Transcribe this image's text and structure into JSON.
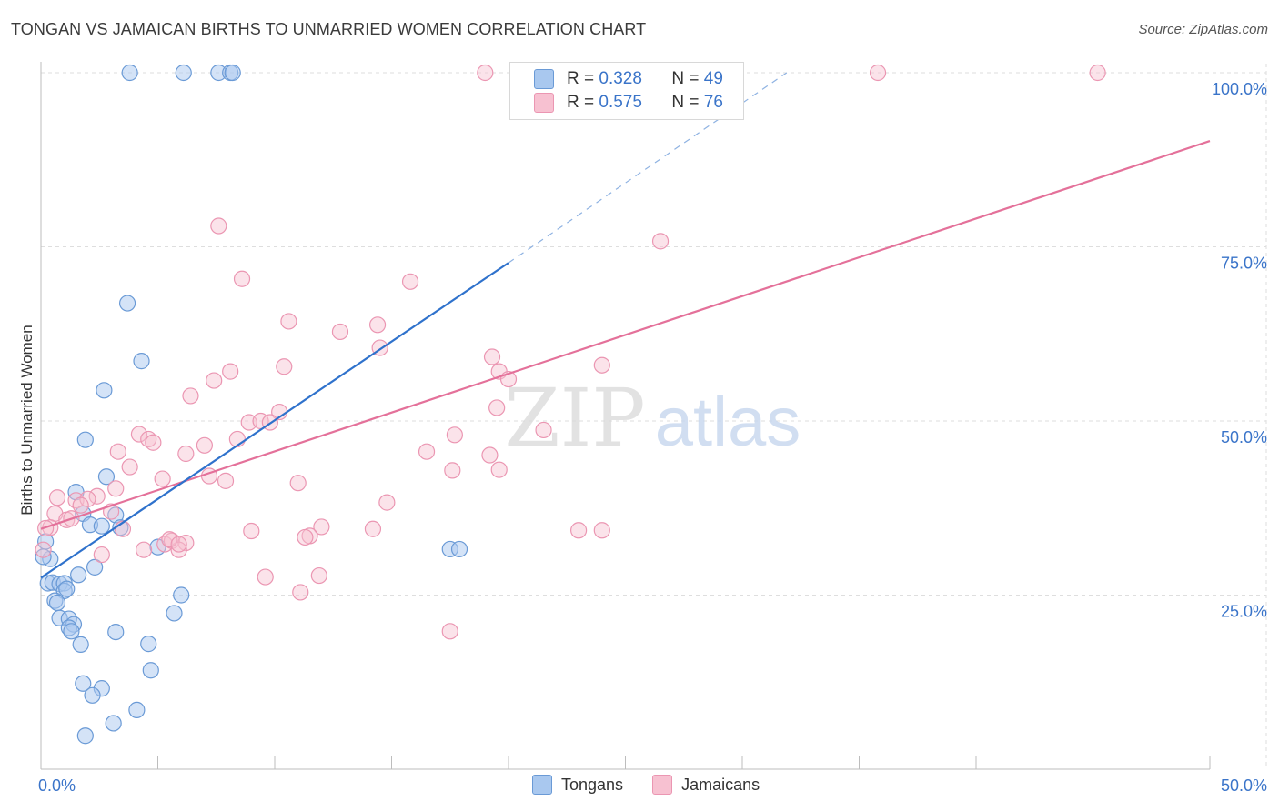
{
  "header": {
    "title": "TONGAN VS JAMAICAN BIRTHS TO UNMARRIED WOMEN CORRELATION CHART",
    "source": "Source: ZipAtlas.com"
  },
  "legend": {
    "rows": [
      {
        "r_label": "R = ",
        "r_value": "0.328",
        "n_label": "N = ",
        "n_value": "49"
      },
      {
        "r_label": "R = ",
        "r_value": "0.575",
        "n_label": "N = ",
        "n_value": "76"
      }
    ]
  },
  "bottom_legend": [
    "Tongans",
    "Jamaicans"
  ],
  "watermark": {
    "zip": "ZIP",
    "atlas": "atlas"
  },
  "colors": {
    "tongan_fill": "#a9c8ef",
    "tongan_stroke": "#6a9ad6",
    "tongan_line": "#2f72cc",
    "jamaican_fill": "#f7c1d1",
    "jamaican_stroke": "#eb96b2",
    "jamaican_line": "#e4719a",
    "axis_label": "#3a74c9",
    "grid": "#dedede"
  },
  "chart_data": {
    "type": "scatter",
    "title": "TONGAN VS JAMAICAN BIRTHS TO UNMARRIED WOMEN CORRELATION CHART",
    "xlabel": "",
    "ylabel": "Births to Unmarried Women",
    "xlim": [
      0,
      50
    ],
    "ylim": [
      0,
      100
    ],
    "x_tick_labels": [
      "0.0%",
      "50.0%"
    ],
    "y_tick_labels": [
      {
        "value": 25,
        "label": "25.0%"
      },
      {
        "value": 50,
        "label": "50.0%"
      },
      {
        "value": 75,
        "label": "75.0%"
      },
      {
        "value": 100,
        "label": "100.0%"
      }
    ],
    "grid": true,
    "series": [
      {
        "name": "Tongans",
        "R": 0.328,
        "N": 49,
        "trend": {
          "x0": 0,
          "y0": 27.5,
          "x1": 20,
          "y1": 72.7,
          "dash_to_x": 31.9,
          "dash_to_y": 100
        },
        "points": [
          {
            "x": 3.8,
            "y": 100
          },
          {
            "x": 6.1,
            "y": 100
          },
          {
            "x": 7.6,
            "y": 100
          },
          {
            "x": 8.1,
            "y": 100
          },
          {
            "x": 8.2,
            "y": 100
          },
          {
            "x": 3.7,
            "y": 66.9
          },
          {
            "x": 4.3,
            "y": 58.6
          },
          {
            "x": 2.7,
            "y": 54.4
          },
          {
            "x": 1.9,
            "y": 47.3
          },
          {
            "x": 2.8,
            "y": 42
          },
          {
            "x": 1.5,
            "y": 39.8
          },
          {
            "x": 1.8,
            "y": 36.7
          },
          {
            "x": 3.2,
            "y": 36.5
          },
          {
            "x": 2.1,
            "y": 35.1
          },
          {
            "x": 2.6,
            "y": 34.9
          },
          {
            "x": 3.4,
            "y": 34.7
          },
          {
            "x": 0.2,
            "y": 32.7
          },
          {
            "x": 5.0,
            "y": 31.9
          },
          {
            "x": 0.4,
            "y": 30.2
          },
          {
            "x": 17.5,
            "y": 31.6
          },
          {
            "x": 17.9,
            "y": 31.6
          },
          {
            "x": 2.3,
            "y": 29
          },
          {
            "x": 1.6,
            "y": 27.9
          },
          {
            "x": 0.3,
            "y": 26.7
          },
          {
            "x": 0.5,
            "y": 26.8
          },
          {
            "x": 0.8,
            "y": 26.6
          },
          {
            "x": 1.0,
            "y": 26.7
          },
          {
            "x": 1.0,
            "y": 25.6
          },
          {
            "x": 1.1,
            "y": 25.9
          },
          {
            "x": 6.0,
            "y": 25
          },
          {
            "x": 0.6,
            "y": 24.2
          },
          {
            "x": 0.7,
            "y": 23.9
          },
          {
            "x": 5.7,
            "y": 22.4
          },
          {
            "x": 0.8,
            "y": 21.7
          },
          {
            "x": 1.2,
            "y": 21.6
          },
          {
            "x": 1.4,
            "y": 20.8
          },
          {
            "x": 1.2,
            "y": 20.3
          },
          {
            "x": 1.3,
            "y": 19.8
          },
          {
            "x": 3.2,
            "y": 19.7
          },
          {
            "x": 1.7,
            "y": 17.9
          },
          {
            "x": 4.6,
            "y": 18
          },
          {
            "x": 4.7,
            "y": 14.2
          },
          {
            "x": 1.8,
            "y": 12.3
          },
          {
            "x": 2.6,
            "y": 11.6
          },
          {
            "x": 2.2,
            "y": 10.6
          },
          {
            "x": 4.1,
            "y": 8.5
          },
          {
            "x": 3.1,
            "y": 6.6
          },
          {
            "x": 1.9,
            "y": 4.8
          },
          {
            "x": 0.1,
            "y": 30.5
          }
        ]
      },
      {
        "name": "Jamaicans",
        "R": 0.575,
        "N": 76,
        "trend": {
          "x0": 0,
          "y0": 34.5,
          "x1": 50,
          "y1": 90.2
        },
        "points": [
          {
            "x": 19.0,
            "y": 100
          },
          {
            "x": 35.8,
            "y": 100
          },
          {
            "x": 45.2,
            "y": 100
          },
          {
            "x": 7.6,
            "y": 78
          },
          {
            "x": 26.5,
            "y": 75.8
          },
          {
            "x": 8.6,
            "y": 70.4
          },
          {
            "x": 15.8,
            "y": 70
          },
          {
            "x": 10.6,
            "y": 64.3
          },
          {
            "x": 14.4,
            "y": 63.8
          },
          {
            "x": 12.8,
            "y": 62.8
          },
          {
            "x": 14.5,
            "y": 60.5
          },
          {
            "x": 19.3,
            "y": 59.2
          },
          {
            "x": 10.4,
            "y": 57.8
          },
          {
            "x": 8.1,
            "y": 57.1
          },
          {
            "x": 24.0,
            "y": 58
          },
          {
            "x": 19.6,
            "y": 57.1
          },
          {
            "x": 20.0,
            "y": 56
          },
          {
            "x": 7.4,
            "y": 55.8
          },
          {
            "x": 6.4,
            "y": 53.6
          },
          {
            "x": 19.5,
            "y": 51.9
          },
          {
            "x": 10.2,
            "y": 51.3
          },
          {
            "x": 8.9,
            "y": 49.8
          },
          {
            "x": 9.4,
            "y": 50
          },
          {
            "x": 9.8,
            "y": 49.8
          },
          {
            "x": 21.5,
            "y": 48.7
          },
          {
            "x": 17.7,
            "y": 48
          },
          {
            "x": 4.2,
            "y": 48.1
          },
          {
            "x": 4.6,
            "y": 47.4
          },
          {
            "x": 4.8,
            "y": 46.9
          },
          {
            "x": 8.4,
            "y": 47.4
          },
          {
            "x": 7.0,
            "y": 46.5
          },
          {
            "x": 3.3,
            "y": 45.6
          },
          {
            "x": 6.2,
            "y": 45.3
          },
          {
            "x": 16.5,
            "y": 45.6
          },
          {
            "x": 19.2,
            "y": 45.1
          },
          {
            "x": 3.8,
            "y": 43.4
          },
          {
            "x": 17.6,
            "y": 42.9
          },
          {
            "x": 19.6,
            "y": 43
          },
          {
            "x": 5.2,
            "y": 41.7
          },
          {
            "x": 7.2,
            "y": 42.1
          },
          {
            "x": 7.9,
            "y": 41.4
          },
          {
            "x": 11.0,
            "y": 41.1
          },
          {
            "x": 3.2,
            "y": 40.3
          },
          {
            "x": 0.7,
            "y": 39
          },
          {
            "x": 1.5,
            "y": 38.6
          },
          {
            "x": 2.4,
            "y": 39.2
          },
          {
            "x": 2.0,
            "y": 38.8
          },
          {
            "x": 1.7,
            "y": 37.9
          },
          {
            "x": 14.8,
            "y": 38.3
          },
          {
            "x": 0.6,
            "y": 36.7
          },
          {
            "x": 1.1,
            "y": 35.8
          },
          {
            "x": 3.0,
            "y": 37
          },
          {
            "x": 1.3,
            "y": 36
          },
          {
            "x": 0.4,
            "y": 34.7
          },
          {
            "x": 3.5,
            "y": 34.5
          },
          {
            "x": 9.0,
            "y": 34.2
          },
          {
            "x": 12.0,
            "y": 34.8
          },
          {
            "x": 14.2,
            "y": 34.5
          },
          {
            "x": 11.5,
            "y": 33.5
          },
          {
            "x": 11.3,
            "y": 33.3
          },
          {
            "x": 23.0,
            "y": 34.3
          },
          {
            "x": 24.0,
            "y": 34.3
          },
          {
            "x": 5.3,
            "y": 32.3
          },
          {
            "x": 5.6,
            "y": 32.8
          },
          {
            "x": 6.2,
            "y": 32.5
          },
          {
            "x": 4.4,
            "y": 31.5
          },
          {
            "x": 5.9,
            "y": 31.5
          },
          {
            "x": 2.6,
            "y": 30.8
          },
          {
            "x": 0.1,
            "y": 31.5
          },
          {
            "x": 9.6,
            "y": 27.6
          },
          {
            "x": 11.9,
            "y": 27.8
          },
          {
            "x": 11.1,
            "y": 25.4
          },
          {
            "x": 17.5,
            "y": 19.8
          },
          {
            "x": 5.5,
            "y": 33
          },
          {
            "x": 5.9,
            "y": 32.3
          },
          {
            "x": 0.2,
            "y": 34.6
          }
        ]
      }
    ]
  }
}
